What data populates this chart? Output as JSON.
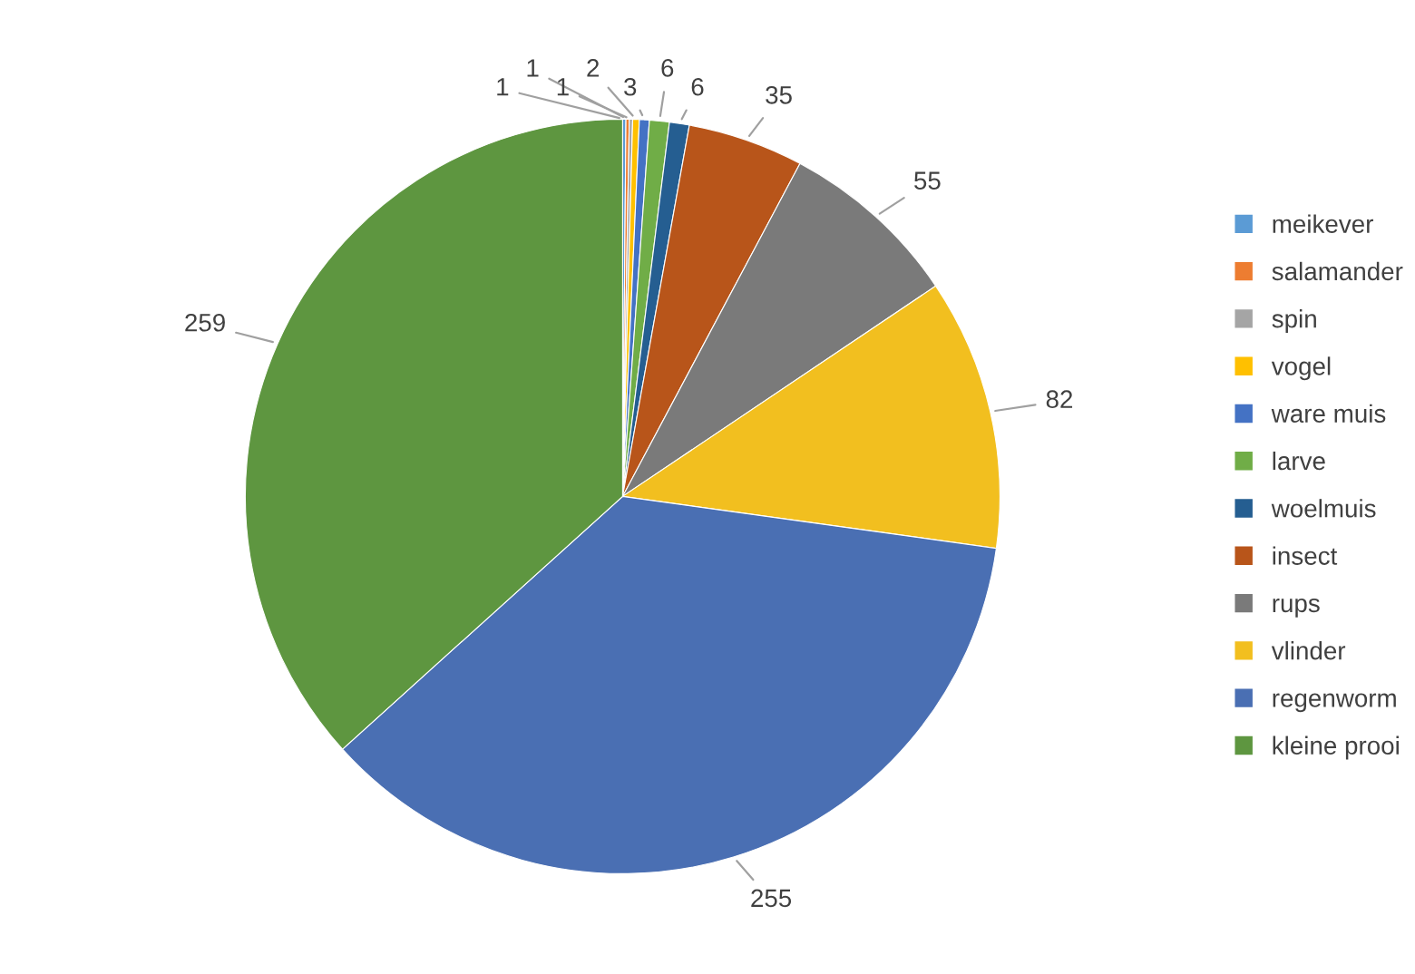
{
  "chart_data": {
    "type": "pie",
    "categories": [
      "meikever",
      "salamander",
      "spin",
      "vogel",
      "ware muis",
      "larve",
      "woelmuis",
      "insect",
      "rups",
      "vlinder",
      "regenworm",
      "kleine prooi"
    ],
    "values": [
      1,
      1,
      1,
      2,
      3,
      6,
      6,
      35,
      55,
      82,
      255,
      259
    ],
    "colors": [
      "#5b9bd5",
      "#ed7d31",
      "#a5a5a5",
      "#ffc000",
      "#4472c4",
      "#70ad47",
      "#255e91",
      "#b8551a",
      "#7a7a7a",
      "#f2bf1f",
      "#4a6fb3",
      "#5e9640"
    ],
    "data_labels": true,
    "legend": "right"
  }
}
